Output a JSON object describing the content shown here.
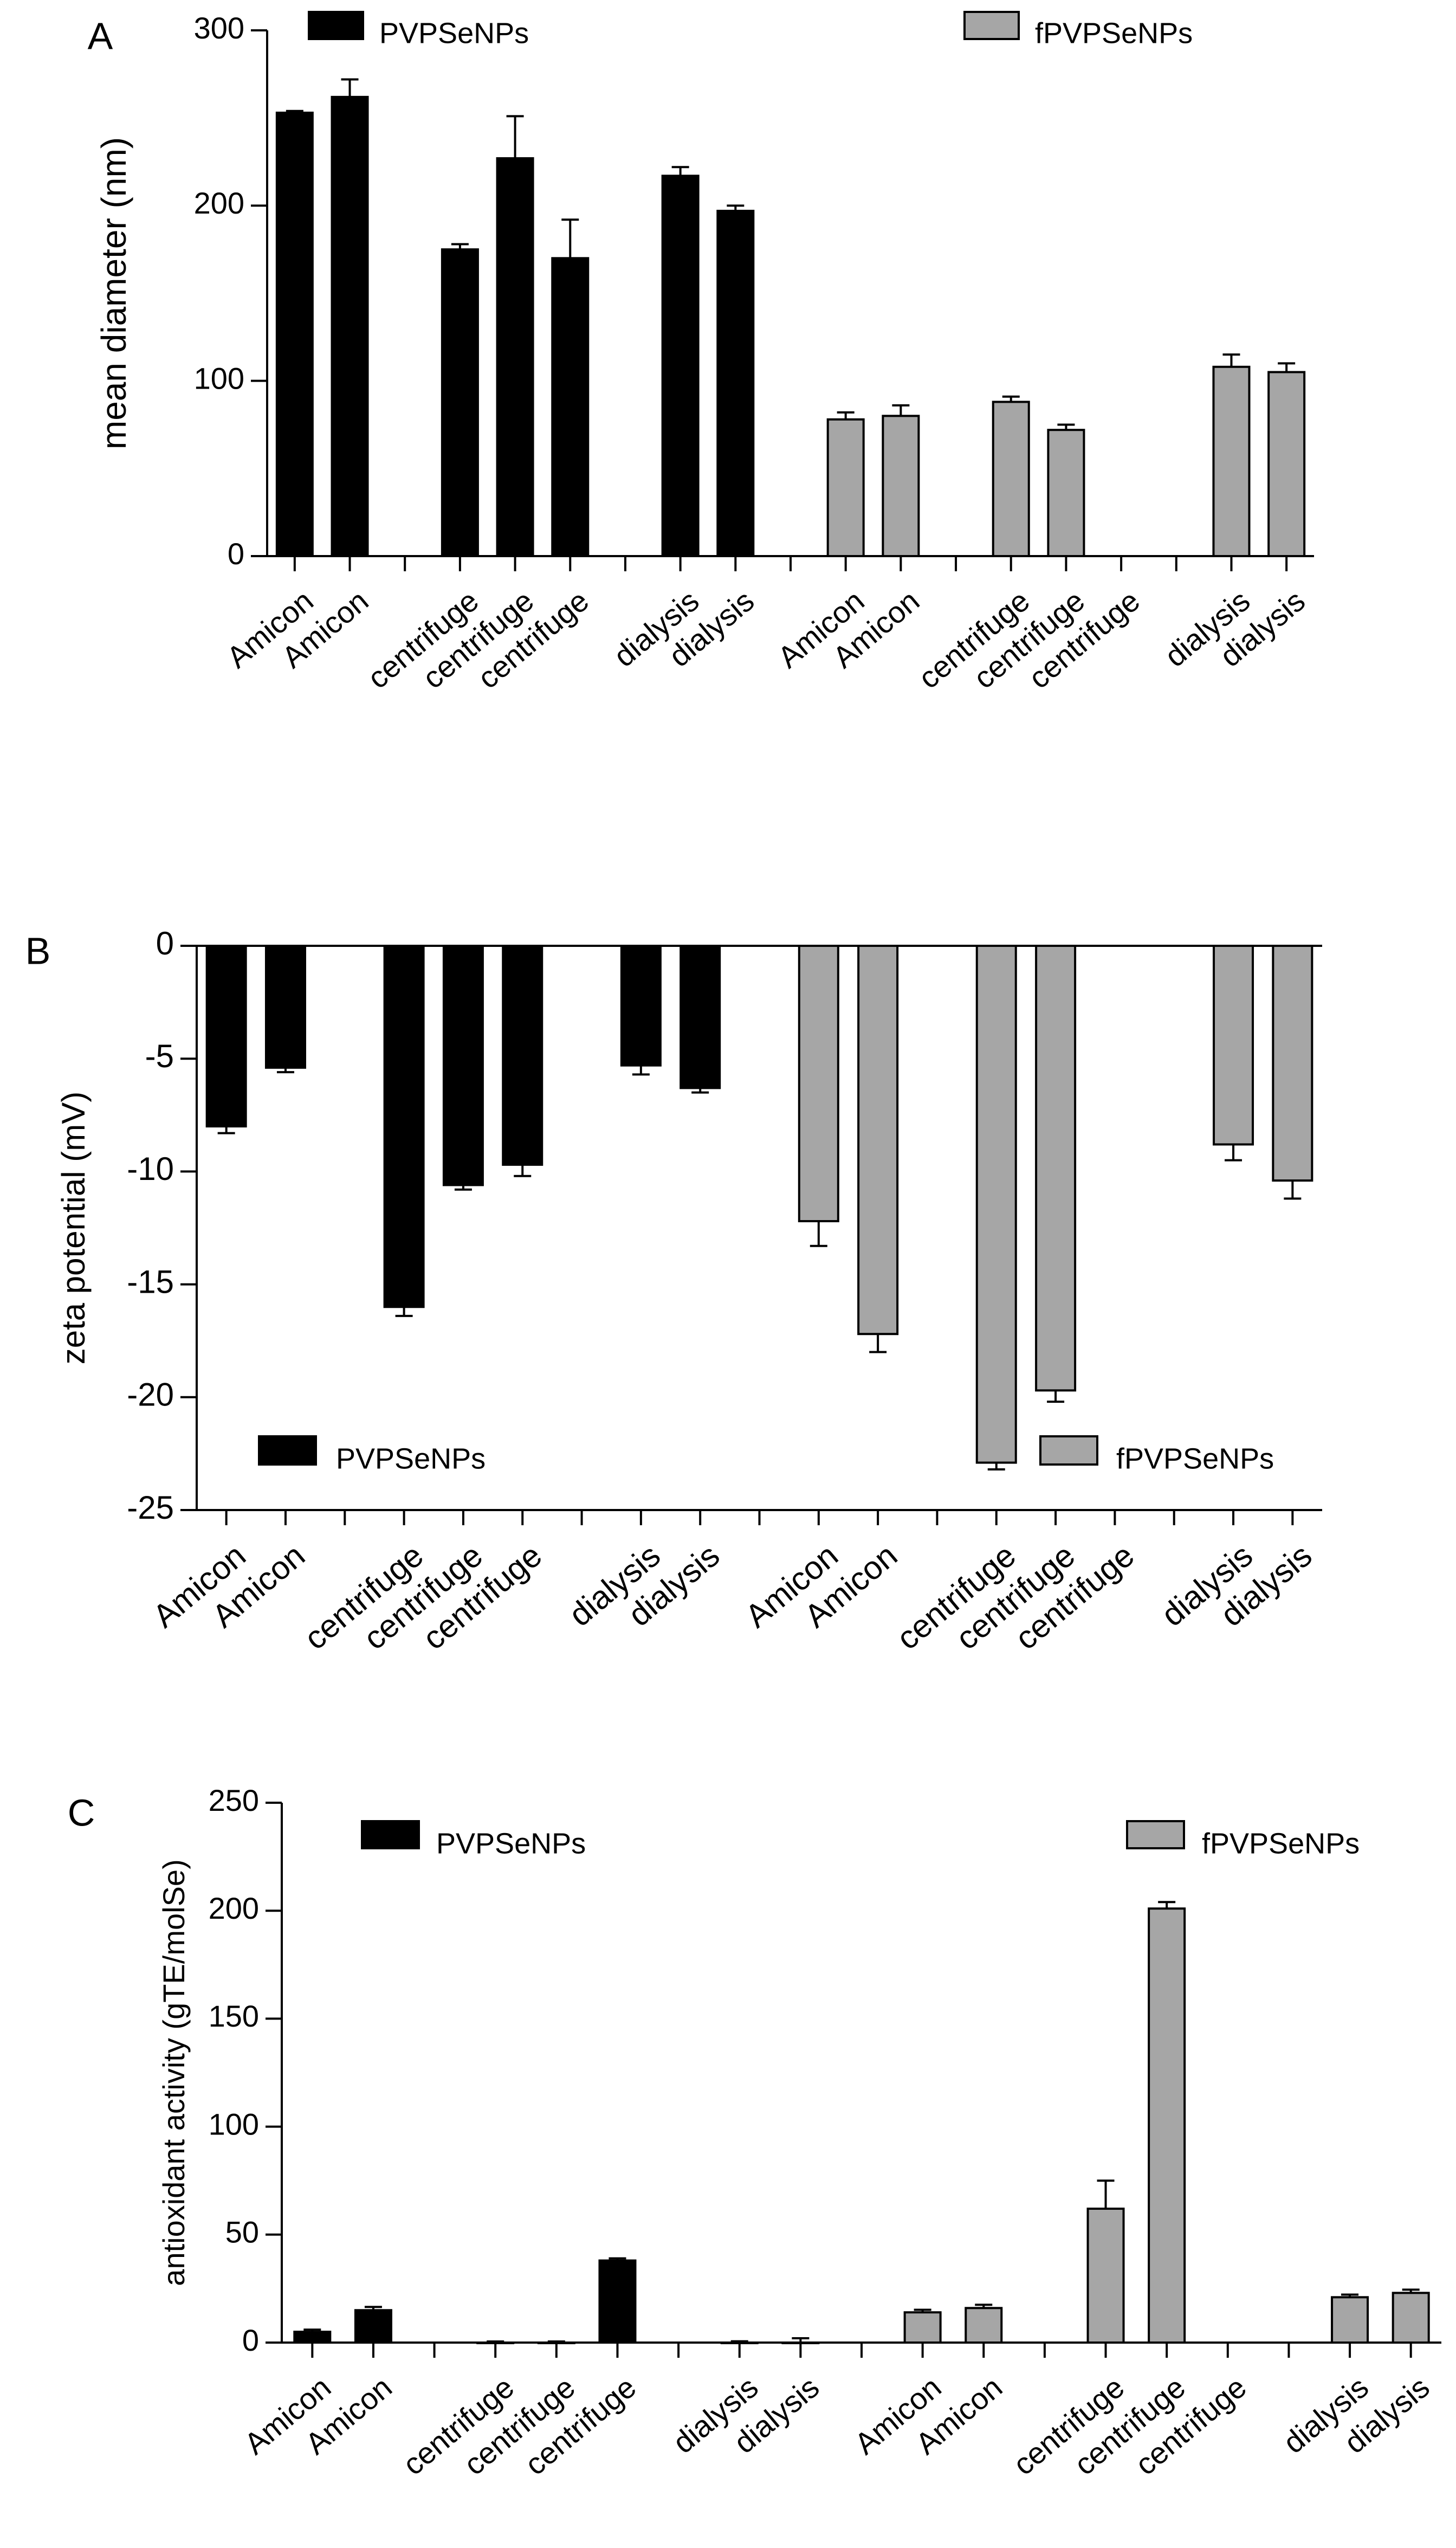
{
  "chart_data": [
    {
      "panel": "A",
      "type": "bar",
      "ylabel": "mean diameter (nm)",
      "xlabel": "",
      "ylim": [
        0,
        300
      ],
      "yticks": [
        0,
        100,
        200,
        300
      ],
      "legend": [
        "PVPSeNPs",
        "fPVPSeNPs"
      ],
      "legend_position": "top",
      "categories": [
        "Amicon",
        "Amicon",
        "",
        "centrifuge",
        "centrifuge",
        "centrifuge",
        "",
        "dialysis",
        "dialysis",
        "",
        "Amicon",
        "Amicon",
        "",
        "centrifuge",
        "centrifuge",
        "centrifuge",
        "",
        "dialysis",
        "dialysis"
      ],
      "series_index": [
        0,
        0,
        null,
        0,
        0,
        0,
        null,
        0,
        0,
        null,
        1,
        1,
        null,
        1,
        1,
        1,
        null,
        1,
        1
      ],
      "values": [
        253,
        262,
        null,
        175,
        227,
        170,
        null,
        217,
        197,
        null,
        78,
        80,
        null,
        88,
        72,
        null,
        null,
        108,
        105
      ],
      "errors": [
        1,
        10,
        null,
        3,
        24,
        22,
        null,
        5,
        3,
        null,
        4,
        6,
        null,
        3,
        3,
        null,
        null,
        7,
        5
      ]
    },
    {
      "panel": "B",
      "type": "bar",
      "ylabel": "zeta potential (mV)",
      "xlabel": "",
      "ylim": [
        -25,
        0
      ],
      "yticks": [
        0,
        -5,
        -10,
        -15,
        -20,
        -25
      ],
      "legend": [
        "PVPSeNPs",
        "fPVPSeNPs"
      ],
      "legend_position": "bottom",
      "categories": [
        "Amicon",
        "Amicon",
        "",
        "centrifuge",
        "centrifuge",
        "centrifuge",
        "",
        "dialysis",
        "dialysis",
        "",
        "Amicon",
        "Amicon",
        "",
        "centrifuge",
        "centrifuge",
        "centrifuge",
        "",
        "dialysis",
        "dialysis"
      ],
      "series_index": [
        0,
        0,
        null,
        0,
        0,
        0,
        null,
        0,
        0,
        null,
        1,
        1,
        null,
        1,
        1,
        1,
        null,
        1,
        1
      ],
      "values": [
        -8.0,
        -5.4,
        null,
        -16.0,
        -10.6,
        -9.7,
        null,
        -5.3,
        -6.3,
        null,
        -12.2,
        -17.2,
        null,
        -22.9,
        -19.7,
        null,
        null,
        -8.8,
        -10.4
      ],
      "errors": [
        0.3,
        0.2,
        null,
        0.4,
        0.2,
        0.5,
        null,
        0.4,
        0.2,
        null,
        1.1,
        0.8,
        null,
        0.3,
        0.5,
        null,
        null,
        0.7,
        0.8
      ]
    },
    {
      "panel": "C",
      "type": "bar",
      "ylabel": "antioxidant activity (gTE/molSe)",
      "xlabel": "",
      "ylim": [
        0,
        250
      ],
      "yticks": [
        0,
        50,
        100,
        150,
        200,
        250
      ],
      "legend": [
        "PVPSeNPs",
        "fPVPSeNPs"
      ],
      "legend_position": "top",
      "categories": [
        "Amicon",
        "Amicon",
        "",
        "centrifuge",
        "centrifuge",
        "centrifuge",
        "",
        "dialysis",
        "dialysis",
        "",
        "Amicon",
        "Amicon",
        "",
        "centrifuge",
        "centrifuge",
        "centrifuge",
        "",
        "dialysis",
        "dialysis"
      ],
      "series_index": [
        0,
        0,
        null,
        0,
        0,
        0,
        null,
        0,
        0,
        null,
        1,
        1,
        null,
        1,
        1,
        1,
        null,
        1,
        1
      ],
      "values": [
        5,
        15,
        null,
        0,
        0,
        38,
        null,
        0,
        0,
        null,
        14,
        16,
        null,
        62,
        201,
        null,
        null,
        21,
        23
      ],
      "errors": [
        1,
        1.5,
        null,
        0.5,
        0.5,
        1,
        null,
        0.6,
        2,
        null,
        1.2,
        1.5,
        null,
        13,
        3,
        null,
        null,
        1.2,
        1.5
      ]
    }
  ],
  "colors": {
    "series0": "#000000",
    "series1": "#a6a6a6",
    "stroke": "#000000"
  }
}
